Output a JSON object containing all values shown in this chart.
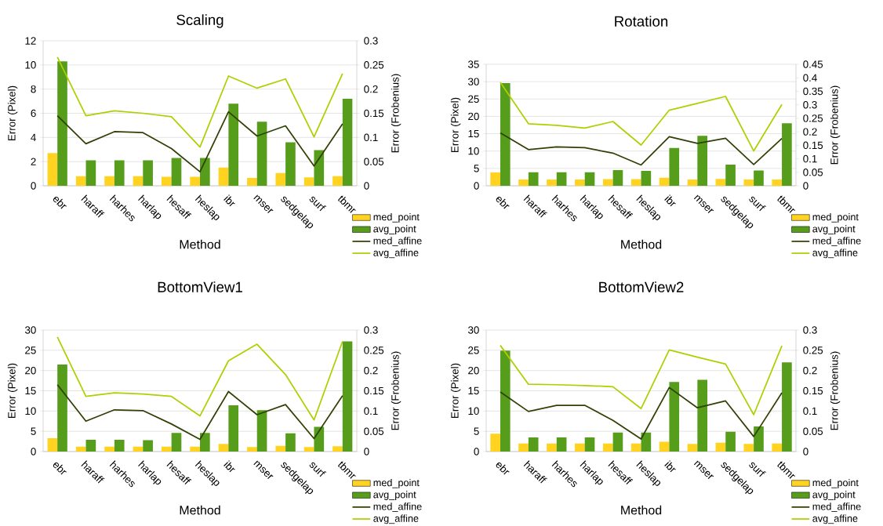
{
  "chart_data": [
    {
      "type": "bar",
      "title": "Scaling",
      "xlabel": "Method",
      "ylabel": "Error (Pixel)",
      "y2label": "Error (Frobenius)",
      "categories": [
        "ebr",
        "haraff",
        "harhes",
        "harlap",
        "hesaff",
        "heslap",
        "ibr",
        "mser",
        "sedgelap",
        "surf",
        "tbmr"
      ],
      "ylim": [
        0,
        12
      ],
      "yticks": [
        0,
        2,
        4,
        6,
        8,
        10,
        12
      ],
      "y2lim": [
        0,
        0.3
      ],
      "y2ticks": [
        0,
        0.05,
        0.1,
        0.15,
        0.2,
        0.25,
        0.3
      ],
      "grid": "y",
      "legend": "bottom right",
      "series": [
        {
          "name": "med_point",
          "color": "#ffd320",
          "values": [
            2.7,
            0.8,
            0.8,
            0.8,
            0.75,
            0.75,
            1.5,
            0.65,
            1.05,
            0.7,
            0.8
          ]
        },
        {
          "name": "avg_point",
          "color": "#579d1c",
          "values": [
            10.3,
            2.1,
            2.1,
            2.1,
            2.3,
            2.3,
            6.8,
            5.3,
            3.6,
            2.95,
            7.2
          ]
        },
        {
          "name": "med_affine",
          "type": "line",
          "axis": "y2",
          "color": "#314004",
          "values": [
            0.145,
            0.087,
            0.112,
            0.11,
            0.077,
            0.029,
            0.153,
            0.103,
            0.124,
            0.041,
            0.128
          ]
        },
        {
          "name": "avg_affine",
          "type": "line",
          "axis": "y2",
          "color": "#aecf00",
          "values": [
            0.266,
            0.145,
            0.155,
            0.15,
            0.143,
            0.08,
            0.227,
            0.202,
            0.221,
            0.101,
            0.232
          ]
        }
      ]
    },
    {
      "type": "bar",
      "title": "Rotation",
      "xlabel": "Method",
      "ylabel": "Error (Pixel)",
      "y2label": "Error (Frobenius)",
      "categories": [
        "ebr",
        "haraff",
        "harhes",
        "harlap",
        "hesaff",
        "heslap",
        "ibr",
        "mser",
        "sedgelap",
        "surf",
        "tbmr"
      ],
      "ylim": [
        0,
        35
      ],
      "yticks": [
        0,
        5,
        10,
        15,
        20,
        25,
        30,
        35
      ],
      "y2lim": [
        0,
        0.45
      ],
      "y2ticks": [
        0,
        0.05,
        0.1,
        0.15,
        0.2,
        0.25,
        0.3,
        0.35,
        0.4,
        0.45
      ],
      "grid": "y",
      "legend": "bottom right",
      "series": [
        {
          "name": "med_point",
          "color": "#ffd320",
          "values": [
            3.9,
            1.8,
            1.8,
            1.8,
            1.9,
            1.9,
            2.3,
            1.8,
            2.0,
            1.8,
            1.8
          ]
        },
        {
          "name": "avg_point",
          "color": "#579d1c",
          "values": [
            29.6,
            3.9,
            3.9,
            3.9,
            4.5,
            4.3,
            10.9,
            14.4,
            6.1,
            4.4,
            18.0
          ]
        },
        {
          "name": "med_affine",
          "type": "line",
          "axis": "y2",
          "color": "#314004",
          "values": [
            0.196,
            0.134,
            0.144,
            0.141,
            0.121,
            0.077,
            0.182,
            0.157,
            0.176,
            0.079,
            0.175
          ]
        },
        {
          "name": "avg_affine",
          "type": "line",
          "axis": "y2",
          "color": "#aecf00",
          "values": [
            0.383,
            0.23,
            0.224,
            0.214,
            0.238,
            0.151,
            0.28,
            0.305,
            0.331,
            0.129,
            0.301
          ]
        }
      ]
    },
    {
      "type": "bar",
      "title": "BottomView1",
      "xlabel": "Method",
      "ylabel": "Error (Pixel)",
      "y2label": "Error (Frobenius)",
      "categories": [
        "ebr",
        "haraff",
        "harhes",
        "harlap",
        "hesaff",
        "heslap",
        "ibr",
        "mser",
        "sedgelap",
        "surf",
        "tbmr"
      ],
      "ylim": [
        0,
        30
      ],
      "yticks": [
        0,
        5,
        10,
        15,
        20,
        25,
        30
      ],
      "y2lim": [
        0,
        0.3
      ],
      "y2ticks": [
        0,
        0.05,
        0.1,
        0.15,
        0.2,
        0.25,
        0.3
      ],
      "grid": "y",
      "legend": "bottom right",
      "series": [
        {
          "name": "med_point",
          "color": "#ffd320",
          "values": [
            3.3,
            1.2,
            1.2,
            1.2,
            1.2,
            1.2,
            1.9,
            1.1,
            1.4,
            1.1,
            1.3
          ]
        },
        {
          "name": "avg_point",
          "color": "#579d1c",
          "values": [
            21.5,
            2.9,
            2.9,
            2.8,
            4.6,
            4.6,
            11.4,
            10.2,
            4.5,
            6.1,
            27.2
          ]
        },
        {
          "name": "med_affine",
          "type": "line",
          "axis": "y2",
          "color": "#314004",
          "values": [
            0.165,
            0.075,
            0.103,
            0.101,
            0.068,
            0.03,
            0.148,
            0.091,
            0.116,
            0.032,
            0.138
          ]
        },
        {
          "name": "avg_affine",
          "type": "line",
          "axis": "y2",
          "color": "#aecf00",
          "values": [
            0.283,
            0.136,
            0.145,
            0.142,
            0.136,
            0.088,
            0.224,
            0.265,
            0.19,
            0.078,
            0.272
          ]
        }
      ]
    },
    {
      "type": "bar",
      "title": "BottomView2",
      "xlabel": "Method",
      "ylabel": "Error (Pixel)",
      "y2label": "Error (Frobenius)",
      "categories": [
        "ebr",
        "haraff",
        "harhes",
        "harlap",
        "hesaff",
        "heslap",
        "ibr",
        "mser",
        "sedgelap",
        "surf",
        "tbmr"
      ],
      "ylim": [
        0,
        30
      ],
      "yticks": [
        0,
        5,
        10,
        15,
        20,
        25,
        30
      ],
      "y2lim": [
        0,
        0.3
      ],
      "y2ticks": [
        0,
        0.05,
        0.1,
        0.15,
        0.2,
        0.25,
        0.3
      ],
      "grid": "y",
      "legend": "bottom right",
      "series": [
        {
          "name": "med_point",
          "color": "#ffd320",
          "values": [
            4.4,
            2.0,
            2.0,
            2.0,
            2.0,
            2.0,
            2.4,
            1.9,
            2.2,
            1.9,
            2.0
          ]
        },
        {
          "name": "avg_point",
          "color": "#579d1c",
          "values": [
            24.9,
            3.5,
            3.5,
            3.5,
            4.7,
            4.7,
            17.2,
            17.7,
            4.9,
            6.2,
            22.0
          ]
        },
        {
          "name": "med_affine",
          "type": "line",
          "axis": "y2",
          "color": "#314004",
          "values": [
            0.147,
            0.099,
            0.114,
            0.114,
            0.077,
            0.031,
            0.158,
            0.108,
            0.125,
            0.037,
            0.145
          ]
        },
        {
          "name": "avg_affine",
          "type": "line",
          "axis": "y2",
          "color": "#aecf00",
          "values": [
            0.262,
            0.166,
            0.165,
            0.163,
            0.16,
            0.106,
            0.251,
            0.233,
            0.216,
            0.091,
            0.261
          ]
        }
      ]
    }
  ]
}
